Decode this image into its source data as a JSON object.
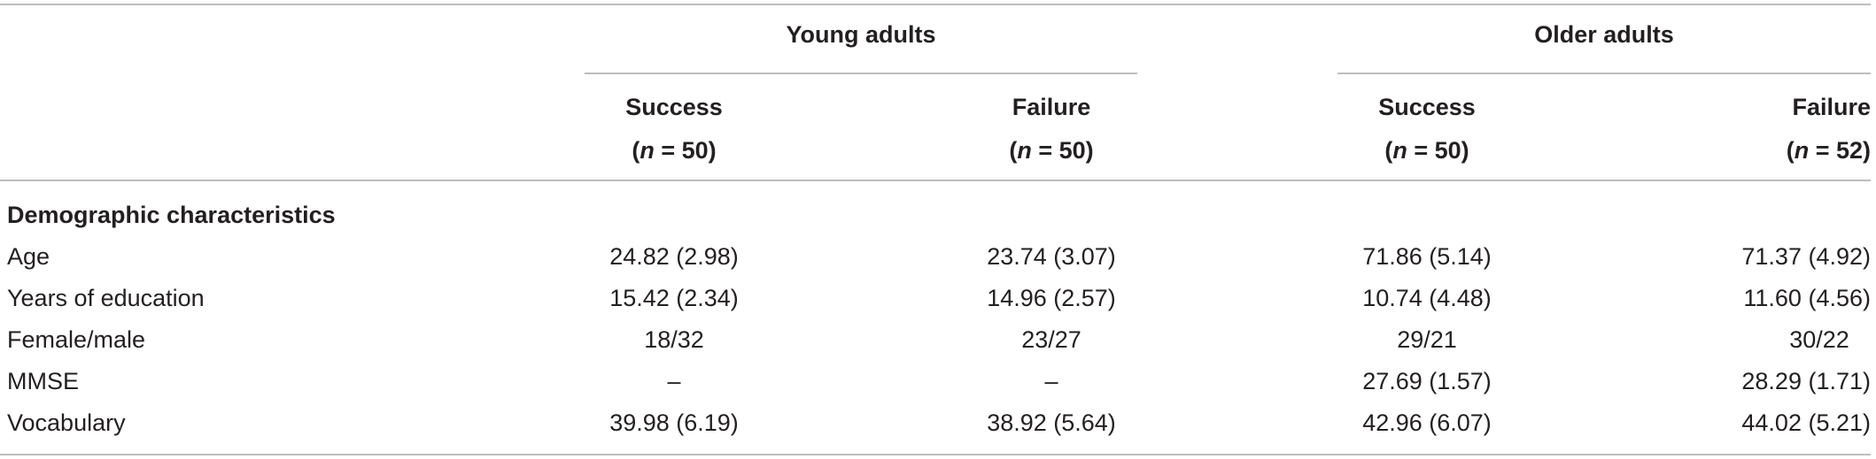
{
  "table": {
    "groups": [
      "Young adults",
      "Older adults"
    ],
    "columns": [
      {
        "label": "Success",
        "n_prefix": "(",
        "n_var": "n",
        "n_rest": " = 50)"
      },
      {
        "label": "Failure",
        "n_prefix": "(",
        "n_var": "n",
        "n_rest": " = 50)"
      },
      {
        "label": "Success",
        "n_prefix": "(",
        "n_var": "n",
        "n_rest": " = 50)"
      },
      {
        "label": "Failure",
        "n_prefix": "(",
        "n_var": "n",
        "n_rest": " = 52)"
      }
    ],
    "section": "Demographic characteristics",
    "rows": [
      {
        "label": "Age",
        "values": [
          "24.82 (2.98)",
          "23.74 (3.07)",
          "71.86 (5.14)",
          "71.37 (4.92)"
        ]
      },
      {
        "label": "Years of education",
        "values": [
          "15.42 (2.34)",
          "14.96 (2.57)",
          "10.74 (4.48)",
          "11.60 (4.56)"
        ]
      },
      {
        "label": "Female/male",
        "values": [
          "18/32",
          "23/27",
          "29/21",
          "30/22"
        ]
      },
      {
        "label": "MMSE",
        "values": [
          "–",
          "–",
          "27.69 (1.57)",
          "28.29 (1.71)"
        ]
      },
      {
        "label": "Vocabulary",
        "values": [
          "39.98 (6.19)",
          "38.92 (5.64)",
          "42.96 (6.07)",
          "44.02 (5.21)"
        ]
      }
    ]
  }
}
